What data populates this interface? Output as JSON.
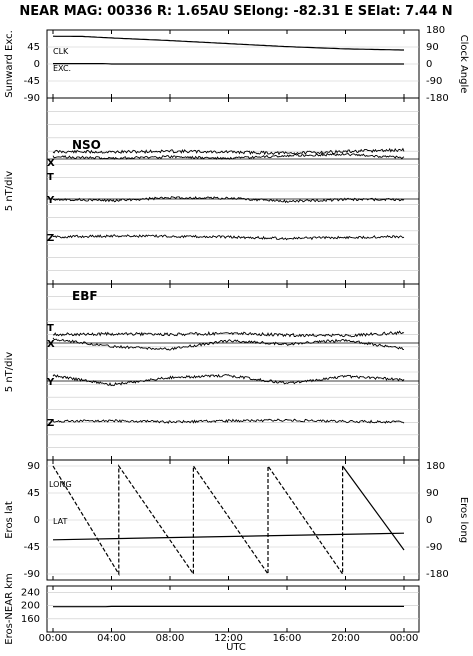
{
  "title": "NEAR MAG: 00336  R: 1.65AU  SElong:  -82.31 E  SElat:    7.44 N",
  "xlabel": "UTC",
  "x_ticks": [
    "00:00",
    "04:00",
    "08:00",
    "12:00",
    "16:00",
    "20:00",
    "00:00"
  ],
  "colors": {
    "foreground": "#000000",
    "background": "#ffffff",
    "grid": "#c8c8c8"
  },
  "chart_data": [
    {
      "id": "sunward",
      "type": "line",
      "ylabel": "Sunward Exc.",
      "ylabel_right": "Clock Angle",
      "left_ticks": [
        "45",
        "0",
        "-45",
        "-90"
      ],
      "right_ticks": [
        "180",
        "90",
        "0",
        "-90",
        "-180"
      ],
      "ylim": [
        -90,
        90
      ],
      "ylim_right": [
        -180,
        180
      ],
      "series_labels": [
        "CLK",
        "EXC."
      ],
      "series": [
        {
          "name": "CLK",
          "axis": "right",
          "x": [
            0,
            2,
            4,
            8,
            12,
            16,
            20,
            24
          ],
          "values": [
            147,
            146,
            138,
            124,
            108,
            92,
            80,
            74
          ]
        },
        {
          "name": "EXC.",
          "axis": "left",
          "x": [
            0,
            3.5,
            4,
            24
          ],
          "values": [
            1,
            1,
            0,
            0
          ]
        }
      ],
      "grid": true
    },
    {
      "id": "nso",
      "type": "line",
      "panel_label": "NSO",
      "ylabel": "5 nT/div",
      "trace_labels": [
        "T",
        "X",
        "Y",
        "Z"
      ],
      "divisions": 14,
      "grid": true,
      "series": [
        {
          "name": "T",
          "x": [
            0,
            4,
            8,
            12,
            16,
            20,
            24
          ],
          "values": [
            0.6,
            0.5,
            0.7,
            0.5,
            0.2,
            0.6,
            1.0
          ]
        },
        {
          "name": "X",
          "x": [
            0,
            4,
            8,
            12,
            16,
            20,
            24
          ],
          "values": [
            0.6,
            0.2,
            0.6,
            0.1,
            0.8,
            1.2,
            0.3
          ]
        },
        {
          "name": "Y",
          "x": [
            0,
            4,
            8,
            12,
            16,
            20,
            24
          ],
          "values": [
            0.0,
            -0.4,
            0.3,
            0.2,
            -0.6,
            -0.1,
            -0.2
          ]
        },
        {
          "name": "Z",
          "x": [
            0,
            4,
            8,
            12,
            16,
            20,
            24
          ],
          "values": [
            0.0,
            0.3,
            0.2,
            0.0,
            -0.4,
            -0.1,
            0.1
          ]
        }
      ]
    },
    {
      "id": "ebf",
      "type": "line",
      "panel_label": "EBF",
      "ylabel": "5 nT/div",
      "trace_labels": [
        "T",
        "X",
        "Y",
        "Z"
      ],
      "divisions": 14,
      "grid": true,
      "series": [
        {
          "name": "T",
          "x": [
            0,
            4,
            8,
            12,
            16,
            20,
            24
          ],
          "values": [
            0.6,
            0.7,
            0.6,
            0.8,
            0.5,
            0.4,
            0.9
          ]
        },
        {
          "name": "X",
          "x": [
            0,
            4,
            8,
            12,
            16,
            20,
            24
          ],
          "values": [
            0.7,
            -0.6,
            -1.0,
            0.4,
            -0.2,
            0.5,
            -1.0
          ]
        },
        {
          "name": "Y",
          "x": [
            0,
            4,
            8,
            12,
            16,
            20,
            24
          ],
          "values": [
            0.9,
            -0.6,
            0.6,
            0.9,
            -0.4,
            0.8,
            0.2
          ]
        },
        {
          "name": "Z",
          "x": [
            0,
            4,
            8,
            12,
            16,
            20,
            24
          ],
          "values": [
            0.1,
            0.2,
            0.0,
            0.2,
            0.3,
            0.1,
            0.0
          ]
        }
      ]
    },
    {
      "id": "eros",
      "type": "line",
      "ylabel": "Eros lat",
      "ylabel_right": "Eros long",
      "left_ticks": [
        "90",
        "45",
        "0",
        "-45",
        "-90"
      ],
      "right_ticks": [
        "180",
        "90",
        "0",
        "-90",
        "-180"
      ],
      "ylim": [
        -90,
        90
      ],
      "ylim_right": [
        -180,
        180
      ],
      "series_labels": [
        "LONG",
        "LAT"
      ],
      "series": [
        {
          "name": "LONG",
          "axis": "right",
          "style": "dashed",
          "x": [
            0,
            4.5,
            4.5,
            9.6,
            9.6,
            14.7,
            14.7,
            19.8,
            19.8
          ],
          "values": [
            180,
            -180,
            180,
            -180,
            180,
            -180,
            180,
            -180,
            180
          ]
        },
        {
          "name": "LONG",
          "axis": "right",
          "style": "solid",
          "x": [
            19.8,
            24
          ],
          "values": [
            180,
            -100
          ]
        },
        {
          "name": "LAT",
          "axis": "left",
          "style": "solid",
          "x": [
            0,
            24
          ],
          "values": [
            -33,
            -22
          ]
        }
      ],
      "grid": true
    },
    {
      "id": "distance",
      "type": "line",
      "ylabel": "Eros-NEAR km",
      "left_ticks": [
        "240",
        "200",
        "160"
      ],
      "ylim": [
        120,
        260
      ],
      "series": [
        {
          "name": "Eros-NEAR km",
          "x": [
            0,
            3.6,
            4.0,
            24
          ],
          "values": [
            197,
            197,
            198,
            198
          ]
        }
      ],
      "grid": true
    }
  ]
}
